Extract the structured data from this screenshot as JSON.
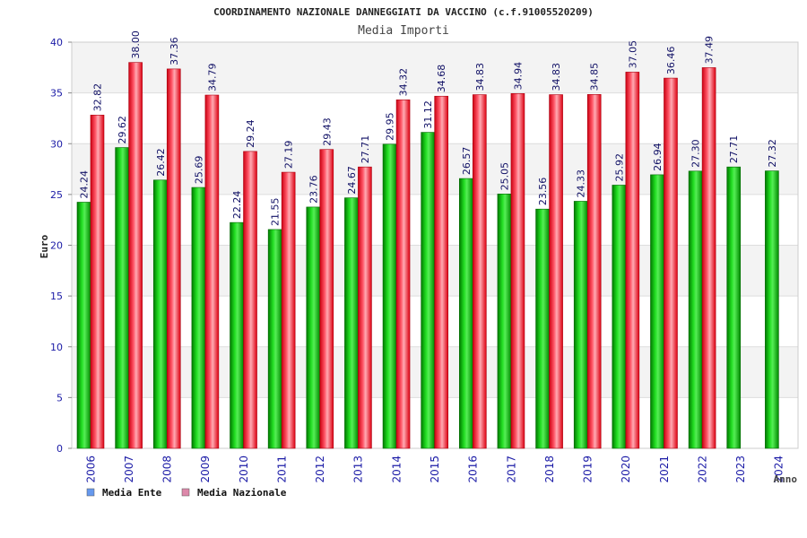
{
  "chart_data": {
    "type": "bar",
    "title": "COORDINAMENTO NAZIONALE DANNEGGIATI DA VACCINO (c.f.91005520209)",
    "subtitle": "Media Importi",
    "xlabel": "Anno",
    "ylabel": "Euro",
    "ylim": [
      0,
      40
    ],
    "yticks": [
      0,
      5,
      10,
      15,
      20,
      25,
      30,
      35,
      40
    ],
    "grid": true,
    "legend_position": "bottom-left",
    "categories": [
      "2006",
      "2007",
      "2008",
      "2009",
      "2010",
      "2011",
      "2012",
      "2013",
      "2014",
      "2015",
      "2016",
      "2017",
      "2018",
      "2019",
      "2020",
      "2021",
      "2022",
      "2023",
      "2024"
    ],
    "series": [
      {
        "name": "Media Ente",
        "color": "#11aa11",
        "legend_color": "#6699ee",
        "values": [
          24.24,
          29.62,
          26.42,
          25.69,
          22.24,
          21.55,
          23.76,
          24.67,
          29.95,
          31.12,
          26.57,
          25.05,
          23.56,
          24.33,
          25.92,
          26.94,
          27.3,
          27.71,
          27.32
        ],
        "labels": [
          "24.24",
          "29.62",
          "26.42",
          "25.69",
          "22.24",
          "21.55",
          "23.76",
          "24.67",
          "29.95",
          "31.12",
          "26.57",
          "25.05",
          "23.56",
          "24.33",
          "25.92",
          "26.94",
          "27.30",
          "27.71",
          "27.32"
        ]
      },
      {
        "name": "Media Nazionale",
        "color": "#ee2233",
        "legend_color": "#dd88aa",
        "values": [
          32.82,
          38.0,
          37.36,
          34.79,
          29.24,
          27.19,
          29.43,
          27.71,
          34.32,
          34.68,
          34.83,
          34.94,
          34.83,
          34.85,
          37.05,
          36.46,
          37.49,
          null,
          null
        ],
        "labels": [
          "32.82",
          "38.00",
          "37.36",
          "34.79",
          "29.24",
          "27.19",
          "29.43",
          "27.71",
          "34.32",
          "34.68",
          "34.83",
          "34.94",
          "34.83",
          "34.85",
          "37.05",
          "36.46",
          "37.49",
          null,
          null
        ]
      }
    ]
  }
}
